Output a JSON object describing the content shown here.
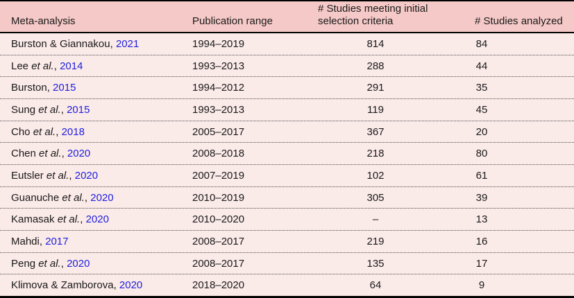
{
  "colors": {
    "header_bg": "#f5c9c7",
    "body_bg": "#faeae8",
    "border": "#000000",
    "link": "#2121dd",
    "text": "#1a1a1a",
    "dotted": "#4d4d4d"
  },
  "table": {
    "columns": [
      {
        "label": "Meta-analysis"
      },
      {
        "label": "Publication range"
      },
      {
        "label_line1": "# Studies meeting initial",
        "label_line2": "selection criteria"
      },
      {
        "label": "# Studies analyzed"
      }
    ],
    "rows": [
      {
        "pre": "Burston & Giannakou",
        "etal": "",
        "after": ", ",
        "year": "2021",
        "range": "1994–2019",
        "initial": "814",
        "analyzed": "84"
      },
      {
        "pre": "Lee ",
        "etal": "et al.",
        "after": ", ",
        "year": "2014",
        "range": "1993–2013",
        "initial": "288",
        "analyzed": "44"
      },
      {
        "pre": "Burston",
        "etal": "",
        "after": ", ",
        "year": "2015",
        "range": "1994–2012",
        "initial": "291",
        "analyzed": "35"
      },
      {
        "pre": "Sung ",
        "etal": "et al.",
        "after": ", ",
        "year": "2015",
        "range": "1993–2013",
        "initial": "119",
        "analyzed": "45"
      },
      {
        "pre": "Cho ",
        "etal": "et al.",
        "after": ", ",
        "year": "2018",
        "range": "2005–2017",
        "initial": "367",
        "analyzed": "20"
      },
      {
        "pre": "Chen ",
        "etal": "et al.",
        "after": ", ",
        "year": "2020",
        "range": "2008–2018",
        "initial": "218",
        "analyzed": "80"
      },
      {
        "pre": "Eutsler ",
        "etal": "et al.",
        "after": ", ",
        "year": "2020",
        "range": "2007–2019",
        "initial": "102",
        "analyzed": "61"
      },
      {
        "pre": "Guanuche ",
        "etal": "et al.",
        "after": ", ",
        "year": "2020",
        "range": "2010–2019",
        "initial": "305",
        "analyzed": "39"
      },
      {
        "pre": "Kamasak ",
        "etal": "et al.",
        "after": ", ",
        "year": "2020",
        "range": "2010–2020",
        "initial": "–",
        "analyzed": "13"
      },
      {
        "pre": "Mahdi",
        "etal": "",
        "after": ", ",
        "year": "2017",
        "range": "2008–2017",
        "initial": "219",
        "analyzed": "16"
      },
      {
        "pre": "Peng ",
        "etal": "et al.",
        "after": ", ",
        "year": "2020",
        "range": "2008–2017",
        "initial": "135",
        "analyzed": "17"
      },
      {
        "pre": "Klimova & Zamborova",
        "etal": "",
        "after": ", ",
        "year": "2020",
        "range": "2018–2020",
        "initial": "64",
        "analyzed": "9"
      }
    ]
  }
}
